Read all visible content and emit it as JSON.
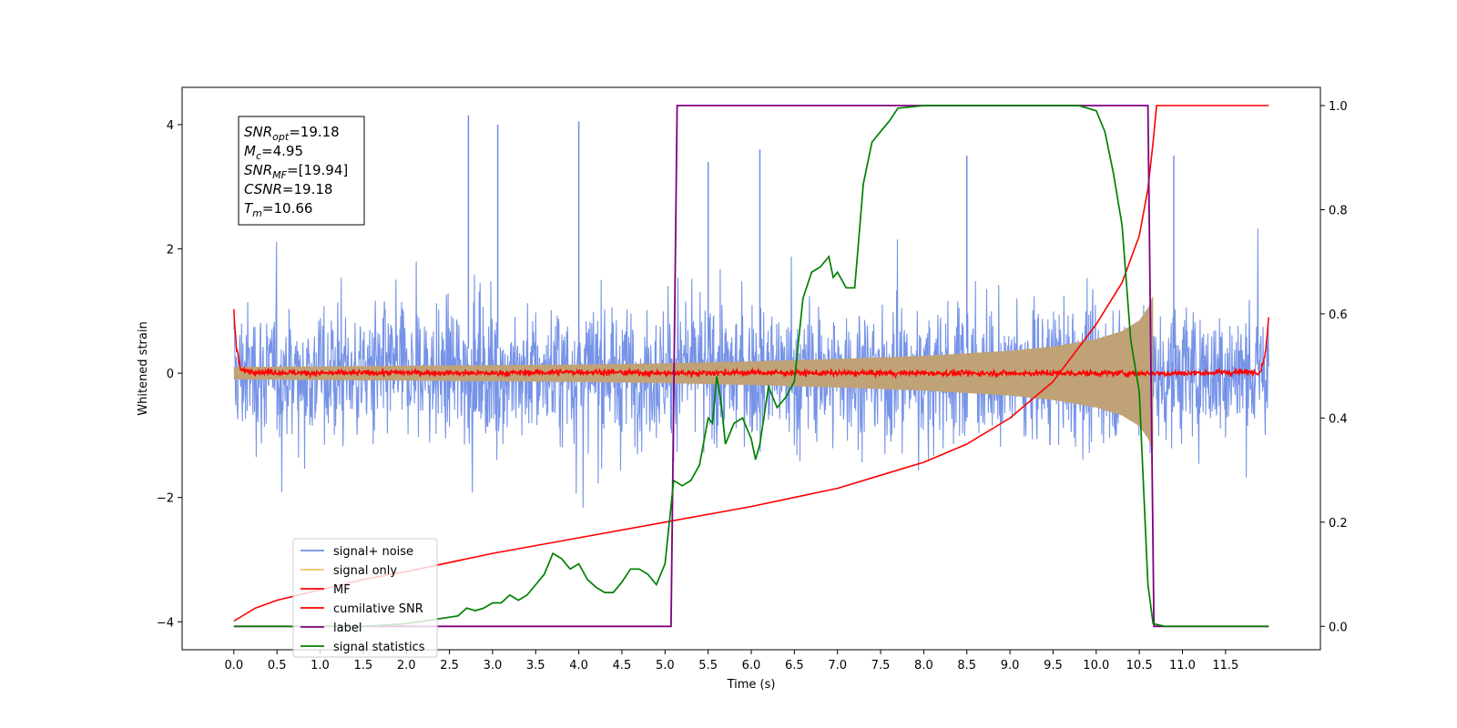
{
  "chart_data": {
    "type": "line",
    "title": "",
    "xlabel": "Time (s)",
    "ylabel": "Whitened strain",
    "ylabel_right": "",
    "xlim": [
      -0.6,
      12.6
    ],
    "ylim": [
      -4.45,
      4.6
    ],
    "ylim_right": [
      -0.045,
      1.035
    ],
    "x_ticks": [
      0.0,
      0.5,
      1.0,
      1.5,
      2.0,
      2.5,
      3.0,
      3.5,
      4.0,
      4.5,
      5.0,
      5.5,
      6.0,
      6.5,
      7.0,
      7.5,
      8.0,
      8.5,
      9.0,
      9.5,
      10.0,
      10.5,
      11.0,
      11.5
    ],
    "x_tick_labels": [
      "0.0",
      "0.5",
      "1.0",
      "1.5",
      "2.0",
      "2.5",
      "3.0",
      "3.5",
      "4.0",
      "4.5",
      "5.0",
      "5.5",
      "6.0",
      "6.5",
      "7.0",
      "7.5",
      "8.0",
      "8.5",
      "9.0",
      "9.5",
      "10.0",
      "10.5",
      "11.0",
      "11.5"
    ],
    "y_ticks": [
      4,
      2,
      0,
      -2,
      -4
    ],
    "y_tick_labels": [
      "4",
      "2",
      "0",
      "−2",
      "−4"
    ],
    "y_right_ticks": [
      1.0,
      0.8,
      0.6,
      0.4,
      0.2,
      0.0
    ],
    "y_right_tick_labels": [
      "1.0",
      "0.8",
      "0.6",
      "0.4",
      "0.2",
      "0.0"
    ],
    "grid": false,
    "legend_position": "lower-left",
    "legend": [
      {
        "label": "signal+ noise",
        "color": "#6f8de6"
      },
      {
        "label": "signal only",
        "color": "#f5c46a"
      },
      {
        "label": "MF",
        "color": "#ff0000"
      },
      {
        "label": "cumilative SNR",
        "color": "#ff0000"
      },
      {
        "label": "label",
        "color": "#800080"
      },
      {
        "label": "signal statistics",
        "color": "#008000"
      }
    ],
    "annotation": [
      {
        "var": "SNR",
        "sub": "opt",
        "value": "=19.18"
      },
      {
        "var": "M",
        "sub": "c",
        "value": "=4.95"
      },
      {
        "var": "SNR",
        "sub": "MF",
        "value": "=[19.94]"
      },
      {
        "var": "CSNR",
        "sub": "",
        "value": "=19.18"
      },
      {
        "var": "T",
        "sub": "m",
        "value": "=10.66"
      }
    ],
    "series": [
      {
        "name": "signal+ noise",
        "axis": "left",
        "color": "#6f8de6",
        "x_range": [
          0.0,
          12.0
        ],
        "envelope_half_width_approx": 2.0,
        "peak_values": [
          4.15,
          4.05,
          4.0,
          3.6,
          3.5,
          3.5,
          3.4
        ]
      },
      {
        "name": "signal only",
        "axis": "left",
        "color": "#f5c46a",
        "x": [
          0.0,
          1.0,
          2.0,
          3.0,
          4.0,
          5.0,
          6.0,
          7.0,
          8.0,
          9.0,
          9.5,
          10.0,
          10.3,
          10.5,
          10.6,
          10.66
        ],
        "amplitude": [
          0.1,
          0.11,
          0.12,
          0.13,
          0.14,
          0.16,
          0.19,
          0.23,
          0.28,
          0.36,
          0.43,
          0.55,
          0.68,
          0.85,
          1.05,
          1.25
        ]
      },
      {
        "name": "MF",
        "axis": "left",
        "color": "#ff0000",
        "x": [
          0.0,
          0.03,
          0.08,
          0.3,
          1.0,
          2.0,
          3.0,
          4.0,
          5.0,
          6.0,
          7.0,
          8.0,
          9.0,
          10.0,
          11.0,
          11.9,
          11.96,
          12.0
        ],
        "y": [
          1.0,
          0.4,
          0.05,
          0.02,
          0.0,
          0.01,
          0.0,
          0.02,
          0.0,
          0.01,
          0.0,
          0.0,
          0.0,
          0.0,
          0.0,
          0.02,
          0.3,
          0.9
        ]
      },
      {
        "name": "cumilative SNR",
        "axis": "right",
        "color": "#ff0000",
        "x": [
          0.0,
          0.25,
          0.5,
          1.0,
          1.5,
          2.0,
          3.0,
          4.0,
          5.0,
          6.0,
          7.0,
          7.5,
          8.0,
          8.5,
          9.0,
          9.5,
          10.0,
          10.3,
          10.5,
          10.6,
          10.66,
          10.7,
          12.0
        ],
        "y": [
          0.01,
          0.035,
          0.05,
          0.07,
          0.09,
          0.105,
          0.14,
          0.17,
          0.2,
          0.23,
          0.265,
          0.29,
          0.315,
          0.35,
          0.4,
          0.47,
          0.58,
          0.66,
          0.75,
          0.84,
          0.93,
          1.0,
          1.0
        ]
      },
      {
        "name": "label",
        "axis": "right",
        "color": "#800080",
        "x": [
          0.0,
          5.07,
          5.14,
          10.6,
          10.67,
          12.0
        ],
        "y": [
          0.0,
          0.0,
          1.0,
          1.0,
          0.0,
          0.0
        ]
      },
      {
        "name": "signal statistics",
        "axis": "right",
        "color": "#008000",
        "x": [
          0.0,
          0.5,
          1.0,
          1.5,
          2.0,
          2.2,
          2.4,
          2.6,
          2.7,
          2.8,
          2.9,
          3.0,
          3.1,
          3.2,
          3.3,
          3.4,
          3.5,
          3.6,
          3.7,
          3.8,
          3.9,
          4.0,
          4.1,
          4.2,
          4.3,
          4.4,
          4.5,
          4.6,
          4.7,
          4.8,
          4.9,
          5.0,
          5.1,
          5.2,
          5.3,
          5.4,
          5.5,
          5.55,
          5.6,
          5.65,
          5.7,
          5.8,
          5.9,
          6.0,
          6.05,
          6.1,
          6.2,
          6.3,
          6.4,
          6.5,
          6.6,
          6.7,
          6.8,
          6.9,
          6.95,
          7.0,
          7.1,
          7.2,
          7.3,
          7.4,
          7.5,
          7.6,
          7.7,
          8.0,
          9.0,
          9.8,
          10.0,
          10.1,
          10.2,
          10.3,
          10.4,
          10.5,
          10.6,
          10.66,
          10.8,
          12.0
        ],
        "y": [
          0.0,
          0.0,
          0.0,
          0.0,
          0.005,
          0.01,
          0.015,
          0.02,
          0.035,
          0.03,
          0.035,
          0.045,
          0.045,
          0.06,
          0.05,
          0.06,
          0.08,
          0.1,
          0.14,
          0.13,
          0.11,
          0.12,
          0.09,
          0.075,
          0.065,
          0.065,
          0.085,
          0.11,
          0.11,
          0.1,
          0.08,
          0.12,
          0.28,
          0.27,
          0.28,
          0.31,
          0.4,
          0.39,
          0.48,
          0.43,
          0.35,
          0.39,
          0.4,
          0.36,
          0.32,
          0.35,
          0.46,
          0.42,
          0.44,
          0.47,
          0.63,
          0.68,
          0.69,
          0.71,
          0.67,
          0.68,
          0.65,
          0.65,
          0.85,
          0.93,
          0.95,
          0.97,
          0.995,
          1.0,
          1.0,
          1.0,
          0.99,
          0.95,
          0.87,
          0.77,
          0.55,
          0.45,
          0.08,
          0.005,
          0.0,
          0.0
        ]
      }
    ]
  }
}
